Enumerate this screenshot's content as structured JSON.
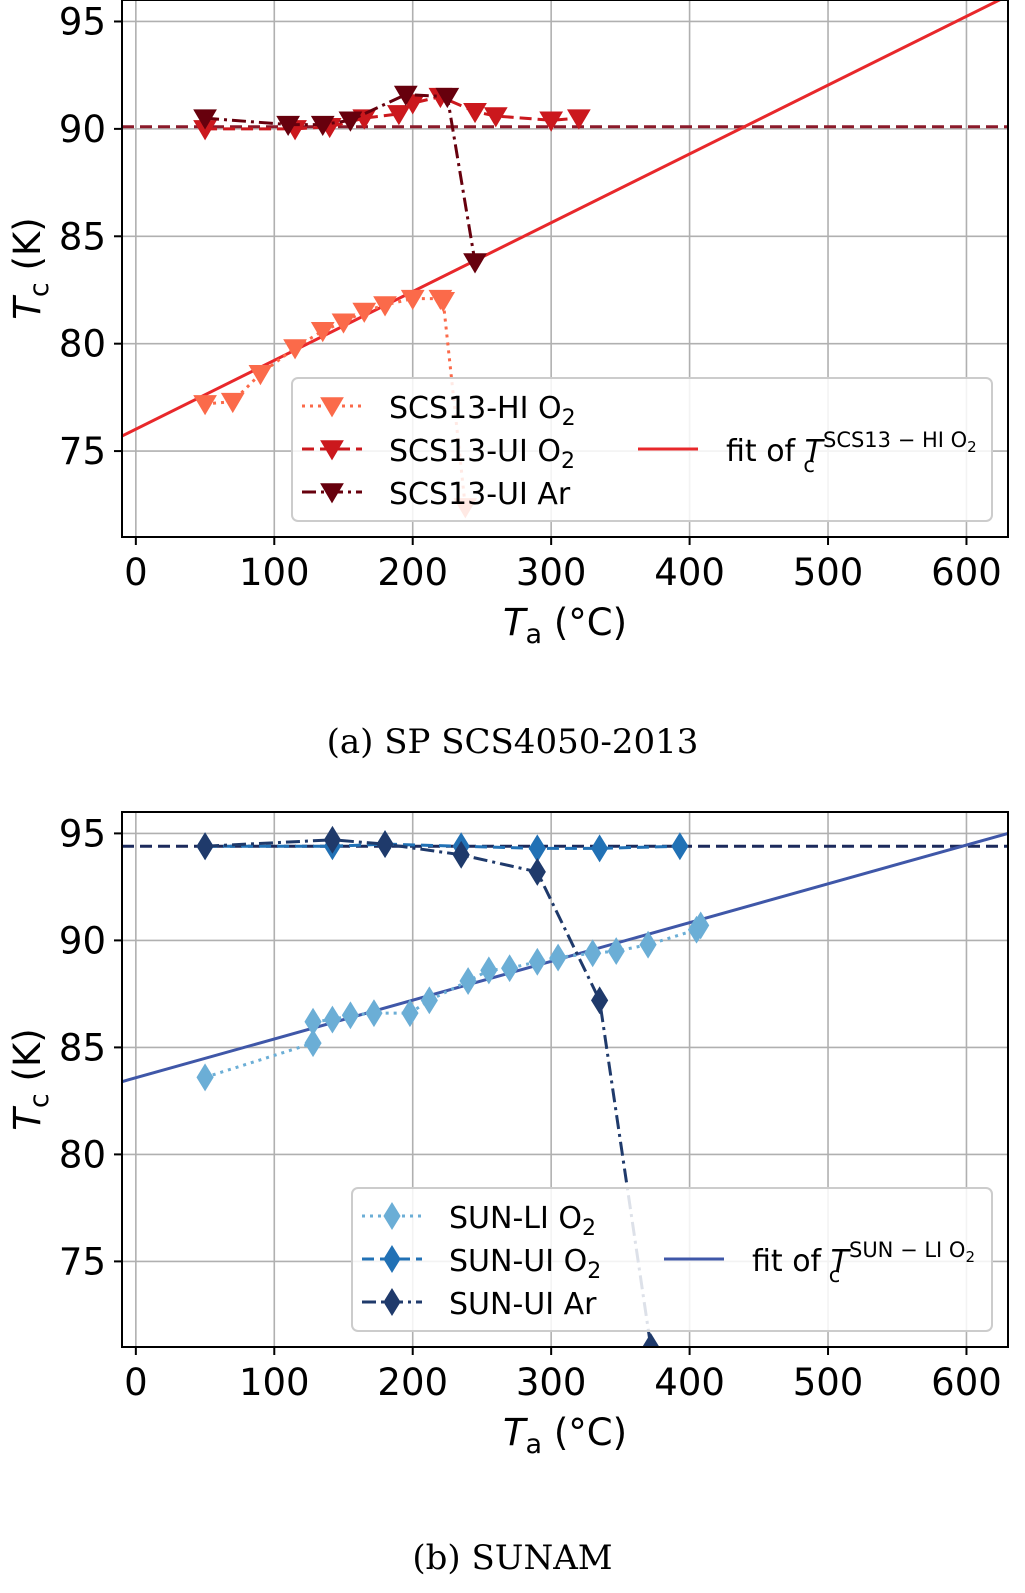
{
  "chart_data": [
    {
      "type": "line",
      "xlabel_base": "T",
      "xlabel_sub": "a",
      "xlabel_unit": "(°C)",
      "ylabel_base": "T",
      "ylabel_sub": "c",
      "ylabel_unit": "(K)",
      "xlim": [
        -10,
        630
      ],
      "ylim": [
        71,
        96
      ],
      "xticks": [
        0,
        100,
        200,
        300,
        400,
        500,
        600
      ],
      "yticks": [
        75,
        80,
        85,
        90,
        95
      ],
      "grid": true,
      "legend_position": "lower-right",
      "caption": "(a) SP SCS4050-2013",
      "series": [
        {
          "name": "SCS13-HI O2",
          "name_base": "SCS13-HI O",
          "name_sub": "2",
          "color": "#fb6a4a",
          "style": "dotted",
          "marker": "triangle-down",
          "x": [
            50,
            70,
            90,
            115,
            135,
            150,
            165,
            180,
            200,
            220,
            222,
            238
          ],
          "y": [
            77.2,
            77.3,
            78.6,
            79.8,
            80.6,
            81.0,
            81.5,
            81.8,
            82.1,
            82.1,
            82.0,
            72.4
          ]
        },
        {
          "name": "SCS13-UI O2",
          "name_base": "SCS13-UI O",
          "name_sub": "2",
          "color": "#cb181d",
          "style": "dashed",
          "marker": "triangle-down",
          "x": [
            50,
            115,
            140,
            165,
            190,
            200,
            220,
            245,
            260,
            300,
            320
          ],
          "y": [
            90.0,
            90.0,
            90.1,
            90.5,
            90.7,
            91.2,
            91.5,
            90.8,
            90.6,
            90.4,
            90.5
          ]
        },
        {
          "name": "SCS13-UI Ar",
          "name_base": "SCS13-UI Ar",
          "name_sub": "",
          "color": "#67000d",
          "style": "dashdot",
          "marker": "triangle-down",
          "x": [
            50,
            110,
            135,
            155,
            195,
            225,
            245
          ],
          "y": [
            90.5,
            90.2,
            90.2,
            90.4,
            91.6,
            91.5,
            83.8
          ]
        }
      ],
      "fit": {
        "label_prefix": "fit of ",
        "base": "T",
        "sub": "c",
        "sup": "SCS13 − HI O",
        "sup_sub": "2",
        "color": "#e8282b",
        "x": [
          -10,
          630
        ],
        "y": [
          75.7,
          96.2
        ]
      },
      "hline": {
        "y": 90.1,
        "color": "#8b1a2a"
      }
    },
    {
      "type": "line",
      "xlabel_base": "T",
      "xlabel_sub": "a",
      "xlabel_unit": "(°C)",
      "ylabel_base": "T",
      "ylabel_sub": "c",
      "ylabel_unit": "(K)",
      "xlim": [
        -10,
        630
      ],
      "ylim": [
        71,
        96
      ],
      "xticks": [
        0,
        100,
        200,
        300,
        400,
        500,
        600
      ],
      "yticks": [
        75,
        80,
        85,
        90,
        95
      ],
      "grid": true,
      "legend_position": "lower-right",
      "caption": "(b) SUNAM",
      "series": [
        {
          "name": "SUN-LI O2",
          "name_base": "SUN-LI O",
          "name_sub": "2",
          "color": "#6baed6",
          "style": "dotted",
          "marker": "diamond",
          "x": [
            50,
            128,
            128,
            142,
            155,
            172,
            198,
            212,
            240,
            255,
            270,
            290,
            305,
            330,
            347,
            370,
            405,
            408
          ],
          "y": [
            83.6,
            85.2,
            86.2,
            86.3,
            86.5,
            86.6,
            86.6,
            87.2,
            88.1,
            88.6,
            88.7,
            89.0,
            89.2,
            89.4,
            89.5,
            89.8,
            90.5,
            90.7
          ]
        },
        {
          "name": "SUN-UI O2",
          "name_base": "SUN-UI O",
          "name_sub": "2",
          "color": "#2171b5",
          "style": "dashed",
          "marker": "diamond",
          "x": [
            50,
            142,
            180,
            235,
            290,
            335,
            393
          ],
          "y": [
            94.4,
            94.4,
            94.5,
            94.4,
            94.3,
            94.3,
            94.4
          ]
        },
        {
          "name": "SUN-UI Ar",
          "name_base": "SUN-UI Ar",
          "name_sub": "",
          "color": "#1f3a6b",
          "style": "dashdot",
          "marker": "diamond",
          "x": [
            50,
            142,
            180,
            235,
            290,
            335,
            372
          ],
          "y": [
            94.4,
            94.7,
            94.5,
            94.0,
            93.2,
            87.2,
            71.0
          ]
        }
      ],
      "fit": {
        "label_prefix": "fit of ",
        "base": "T",
        "sub": "c",
        "sup": "SUN − LI O",
        "sup_sub": "2",
        "color": "#3f57a8",
        "x": [
          -10,
          630
        ],
        "y": [
          83.4,
          95.0
        ]
      },
      "hline": {
        "y": 94.4,
        "color": "#1c2a5c"
      }
    }
  ]
}
